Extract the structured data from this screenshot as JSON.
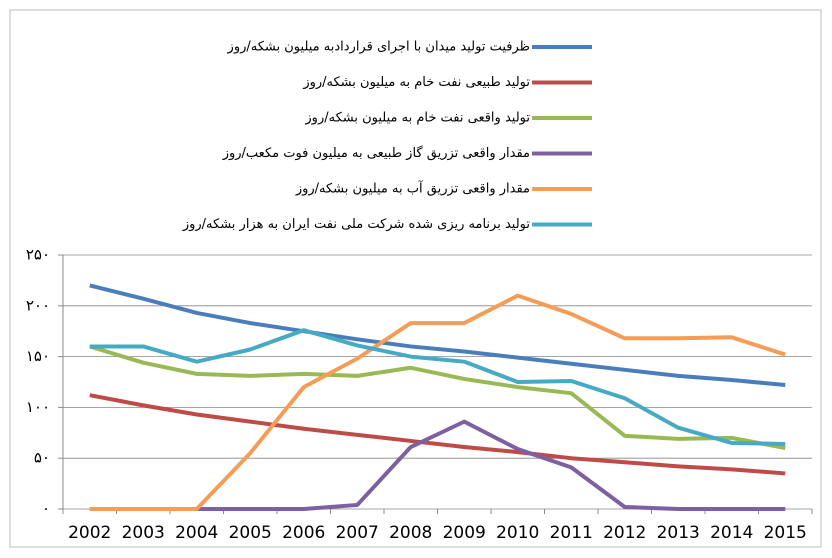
{
  "chart_data": {
    "type": "line",
    "categories": [
      "2002",
      "2003",
      "2004",
      "2005",
      "2006",
      "2007",
      "2008",
      "2009",
      "2010",
      "2011",
      "2012",
      "2013",
      "2014",
      "2015"
    ],
    "series": [
      {
        "name": "ظرفیت تولید میدان با اجرای قراردادبه میلیون بشکه/روز",
        "color": "#4a7ebb",
        "values": [
          220,
          207,
          193,
          183,
          175,
          167,
          160,
          155,
          149,
          143,
          137,
          131,
          127,
          122
        ]
      },
      {
        "name": "تولید طبیعی نفت خام به میلیون بشکه/روز",
        "color": "#be4b48",
        "values": [
          112,
          102,
          93,
          86,
          79,
          73,
          67,
          61,
          56,
          50,
          46,
          42,
          39,
          35
        ]
      },
      {
        "name": "تولید واقعی نفت خام به میلیون بشکه/روز",
        "color": "#98b954",
        "values": [
          160,
          144,
          133,
          131,
          133,
          131,
          139,
          128,
          120,
          114,
          72,
          69,
          70,
          60
        ]
      },
      {
        "name": "مقدار واقعی تزریق گاز طبیعی به میلیون فوت مکعب/روز",
        "color": "#7d60a0",
        "values": [
          0,
          0,
          0,
          0,
          0,
          4,
          61,
          86,
          59,
          41,
          2,
          0,
          0,
          0
        ]
      },
      {
        "name": "مقدار واقعی تزریق آب به میلیون بشکه/روز",
        "color": "#f59d56",
        "values": [
          0,
          0,
          0,
          55,
          120,
          148,
          183,
          183,
          210,
          192,
          168,
          168,
          169,
          152
        ]
      },
      {
        "name": "تولید برنامه ریزی شده شرکت ملی نفت ایران به هزار بشکه/روز",
        "color": "#46aac5",
        "values": [
          160,
          160,
          145,
          157,
          176,
          161,
          150,
          145,
          125,
          126,
          109,
          80,
          65,
          64
        ]
      }
    ],
    "ylim": [
      0,
      250
    ],
    "yticks": [
      {
        "value": 0,
        "label": "۰"
      },
      {
        "value": 50,
        "label": "۵۰"
      },
      {
        "value": 100,
        "label": "۱۰۰"
      },
      {
        "value": 150,
        "label": "۱۵۰"
      },
      {
        "value": 200,
        "label": "۲۰۰"
      },
      {
        "value": 250,
        "label": "۲۵۰"
      }
    ],
    "grid": true,
    "legend": "top"
  }
}
